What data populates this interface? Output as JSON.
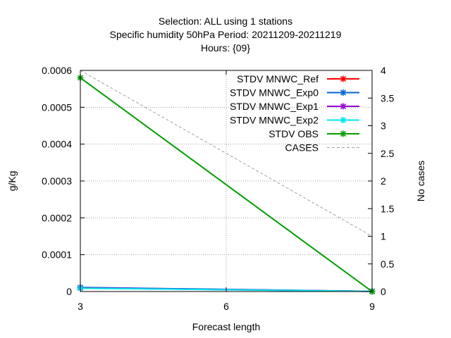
{
  "chart_data": {
    "type": "line",
    "title": [
      "Selection: ALL using     1 stations",
      "Specific humidity 50hPa   Period: 20211209-20211219",
      "Hours: {09}"
    ],
    "xlabel": "Forecast length",
    "ylabel": "g/Kg",
    "y2label": "No cases",
    "xlim": [
      3,
      9
    ],
    "ylim": [
      0,
      0.0006
    ],
    "y2lim": [
      0,
      4
    ],
    "x_ticks": [
      3,
      6,
      9
    ],
    "x_tick_labels": [
      "3",
      "6",
      "9"
    ],
    "y_ticks": [
      0,
      0.0001,
      0.0002,
      0.0003,
      0.0004,
      0.0005,
      0.0006
    ],
    "y_tick_labels": [
      "0",
      "0.0001",
      "0.0002",
      "0.0003",
      "0.0004",
      "0.0005",
      "0.0006"
    ],
    "y2_ticks": [
      0,
      0.5,
      1,
      1.5,
      2,
      2.5,
      3,
      3.5,
      4
    ],
    "y2_tick_labels": [
      "0",
      "0.5",
      "1",
      "1.5",
      "2",
      "2.5",
      "3",
      "3.5",
      "4"
    ],
    "grid": true,
    "legend_position": "top-right",
    "x": [
      3,
      9
    ],
    "series": [
      {
        "name": "STDV MNWC_Ref",
        "values": [
          1.05e-05,
          5e-07
        ],
        "color": "#ff0000",
        "axis": "y",
        "marker": "x",
        "dash": false
      },
      {
        "name": "STDV MNWC_Exp0",
        "values": [
          1.1e-05,
          5e-07
        ],
        "color": "#0066cc",
        "axis": "y",
        "marker": "x",
        "dash": false
      },
      {
        "name": "STDV MNWC_Exp1",
        "values": [
          9.5e-06,
          5e-07
        ],
        "color": "#9400d3",
        "axis": "y",
        "marker": "x",
        "dash": false
      },
      {
        "name": "STDV MNWC_Exp2",
        "values": [
          9e-06,
          5e-07
        ],
        "color": "#00e5ee",
        "axis": "y",
        "marker": "x",
        "dash": false
      },
      {
        "name": "STDV OBS",
        "values": [
          0.00058,
          0
        ],
        "color": "#009e00",
        "axis": "y",
        "marker": "x",
        "dash": false
      },
      {
        "name": "CASES",
        "values": [
          4,
          1
        ],
        "color": "#a0a0a0",
        "axis": "y2",
        "marker": "",
        "dash": true
      }
    ]
  }
}
